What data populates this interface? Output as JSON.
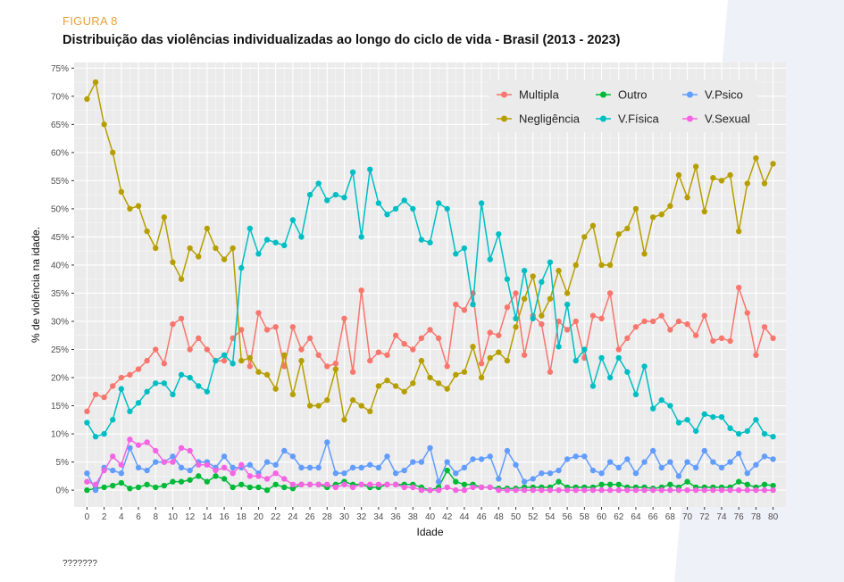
{
  "figure_label": "FIGURA 8",
  "title": "Distribuição das violências individualizadas ao longo do ciclo de vida - Brasil (2013 - 2023)",
  "footnote": "???????",
  "chart_data": {
    "type": "line",
    "xlabel": "Idade",
    "ylabel": "% de violência na idade.",
    "xlim": [
      -1.5,
      81.5
    ],
    "ylim": [
      -3,
      76
    ],
    "x_ticks": [
      0,
      2,
      4,
      6,
      8,
      10,
      12,
      14,
      16,
      18,
      20,
      22,
      24,
      26,
      28,
      30,
      32,
      34,
      36,
      38,
      40,
      42,
      44,
      46,
      48,
      50,
      52,
      54,
      56,
      58,
      60,
      62,
      64,
      66,
      68,
      70,
      72,
      74,
      76,
      78,
      80
    ],
    "y_ticks": [
      0,
      5,
      10,
      15,
      20,
      25,
      30,
      35,
      40,
      45,
      50,
      55,
      60,
      65,
      70,
      75
    ],
    "y_tick_labels": [
      "0%",
      "5%",
      "10%",
      "15%",
      "20%",
      "25%",
      "30%",
      "35%",
      "40%",
      "45%",
      "50%",
      "55%",
      "60%",
      "65%",
      "70%",
      "75%"
    ],
    "legend_position": "top-right",
    "x": [
      0,
      1,
      2,
      3,
      4,
      5,
      6,
      7,
      8,
      9,
      10,
      11,
      12,
      13,
      14,
      15,
      16,
      17,
      18,
      19,
      20,
      21,
      22,
      23,
      24,
      25,
      26,
      27,
      28,
      29,
      30,
      31,
      32,
      33,
      34,
      35,
      36,
      37,
      38,
      39,
      40,
      41,
      42,
      43,
      44,
      45,
      46,
      47,
      48,
      49,
      50,
      51,
      52,
      53,
      54,
      55,
      56,
      57,
      58,
      59,
      60,
      61,
      62,
      63,
      64,
      65,
      66,
      67,
      68,
      69,
      70,
      71,
      72,
      73,
      74,
      75,
      76,
      77,
      78,
      79,
      80
    ],
    "series": [
      {
        "name": "Multipla",
        "color": "#f8766d",
        "values": [
          14,
          17,
          16.5,
          18.5,
          20,
          20.5,
          21.5,
          23,
          25,
          22.5,
          29.5,
          30.5,
          25,
          27,
          25,
          23,
          23,
          27,
          28.5,
          22,
          31.5,
          28.5,
          29,
          22,
          29,
          25,
          27,
          24,
          22,
          22.5,
          30.5,
          21,
          35.5,
          23,
          24.5,
          24,
          27.5,
          26,
          25,
          27,
          28.5,
          27,
          22,
          33,
          32,
          35,
          22.5,
          28,
          27.5,
          32.5,
          35,
          24,
          31,
          29.5,
          21,
          30,
          28.5,
          30,
          23.5,
          31,
          30.5,
          35,
          25,
          27,
          29,
          30,
          30,
          31,
          28.5,
          30,
          29.5,
          27.5,
          31,
          26.5,
          27,
          26.5,
          36,
          31.5,
          24,
          29,
          27
        ]
      },
      {
        "name": "Negligência",
        "color": "#b79f00",
        "values": [
          69.5,
          72.5,
          65,
          60,
          53,
          50,
          50.5,
          46,
          43,
          48.5,
          40.5,
          37.5,
          43,
          41.5,
          46.5,
          43,
          41,
          43,
          23,
          23.5,
          21,
          20.5,
          18,
          24,
          17,
          23,
          15,
          15,
          16,
          21.5,
          12.5,
          16,
          15,
          14,
          18.5,
          19.5,
          18.5,
          17.5,
          19,
          23,
          20,
          19,
          18,
          20.5,
          21,
          25.5,
          20,
          23.5,
          24.5,
          23,
          29,
          34,
          38,
          31,
          34,
          39,
          35,
          40,
          45,
          47,
          40,
          40,
          45.5,
          46.5,
          50,
          42,
          48.5,
          49,
          50.5,
          56,
          52,
          57.5,
          49.5,
          55.5,
          55,
          56,
          46,
          54.5,
          59,
          54.5,
          58
        ]
      },
      {
        "name": "Outro",
        "color": "#00ba38",
        "values": [
          0,
          0.3,
          0.5,
          0.8,
          1.3,
          0.3,
          0.5,
          1,
          0.5,
          0.8,
          1.5,
          1.5,
          1.8,
          2.5,
          1.5,
          2.5,
          2,
          0.5,
          1,
          0.5,
          0.5,
          0,
          1,
          0.5,
          0.3,
          1,
          1,
          1,
          0.5,
          1,
          1.5,
          1,
          1,
          0.5,
          0.5,
          1,
          1,
          1,
          1,
          0.5,
          0,
          0.5,
          3.5,
          1.5,
          1,
          1,
          0.5,
          0.5,
          0.3,
          0.3,
          0.3,
          0.5,
          0.5,
          0.5,
          0.5,
          1.5,
          0.5,
          0.5,
          0.5,
          0.5,
          1,
          1,
          1,
          0.5,
          0.5,
          0.5,
          0.3,
          0.5,
          1,
          0.5,
          1.5,
          0.5,
          0.5,
          0.5,
          0.5,
          0.5,
          1.5,
          1,
          0.5,
          1,
          0.8
        ]
      },
      {
        "name": "V.Física",
        "color": "#00bfc4",
        "values": [
          12,
          9.5,
          10,
          12.5,
          18,
          14,
          15.5,
          17.5,
          19,
          19,
          17,
          20.5,
          20,
          18.5,
          17.5,
          23,
          24,
          22.5,
          39.5,
          46.5,
          42,
          44.5,
          44,
          43.5,
          48,
          45,
          52.5,
          54.5,
          51.5,
          52.5,
          52,
          56.5,
          45,
          57,
          51,
          49,
          50,
          51.5,
          50,
          44.5,
          44,
          51,
          50,
          42,
          43,
          33,
          51,
          41,
          45.5,
          37.5,
          30.5,
          39,
          30.5,
          37,
          40.5,
          25.5,
          33,
          23,
          25,
          18.5,
          23.5,
          20,
          23.5,
          21,
          17,
          22,
          14.5,
          16,
          15,
          12,
          12.5,
          10.5,
          13.5,
          13,
          13,
          11,
          10,
          10.5,
          12.5,
          10,
          9.5
        ]
      },
      {
        "name": "V.Psico",
        "color": "#619cff",
        "values": [
          3,
          0,
          4,
          3.5,
          3,
          7.5,
          4,
          3.5,
          5,
          5,
          6,
          4,
          3.5,
          5,
          5,
          4,
          6,
          4,
          4,
          4.5,
          3,
          5,
          4.5,
          7,
          6,
          4,
          4,
          4,
          8.5,
          3,
          3,
          4,
          4,
          4.5,
          4,
          6,
          3,
          3.5,
          5,
          5,
          7.5,
          1.5,
          5,
          3,
          4,
          5.5,
          5.5,
          6,
          2,
          7,
          4.5,
          1.5,
          2,
          3,
          3,
          3.5,
          5.5,
          6,
          6,
          3.5,
          3,
          5,
          4,
          5.5,
          3,
          5,
          7,
          4,
          5,
          2.5,
          5,
          4,
          7,
          5,
          4,
          5,
          6.5,
          3,
          4.5,
          6,
          5.5
        ]
      },
      {
        "name": "V.Sexual",
        "color": "#f564e3",
        "values": [
          1.5,
          1,
          3.5,
          6,
          4.5,
          9,
          8,
          8.5,
          7,
          5,
          5,
          7.5,
          7,
          4.5,
          4.5,
          3.5,
          4,
          3,
          4.5,
          2.5,
          2.5,
          2,
          3,
          2,
          1,
          1,
          1,
          1,
          1,
          0.5,
          1,
          0.5,
          1,
          1,
          1,
          1,
          1,
          0.5,
          0.5,
          0,
          0,
          0,
          0.5,
          0,
          0,
          0.5,
          0.5,
          0.5,
          0,
          0,
          0,
          0,
          0,
          0,
          0,
          0,
          0,
          0,
          0,
          0,
          0,
          0,
          0,
          0,
          0,
          0,
          0,
          0,
          0,
          0,
          0,
          0,
          0,
          0,
          0,
          0,
          0,
          0,
          0,
          0,
          0
        ]
      }
    ]
  }
}
